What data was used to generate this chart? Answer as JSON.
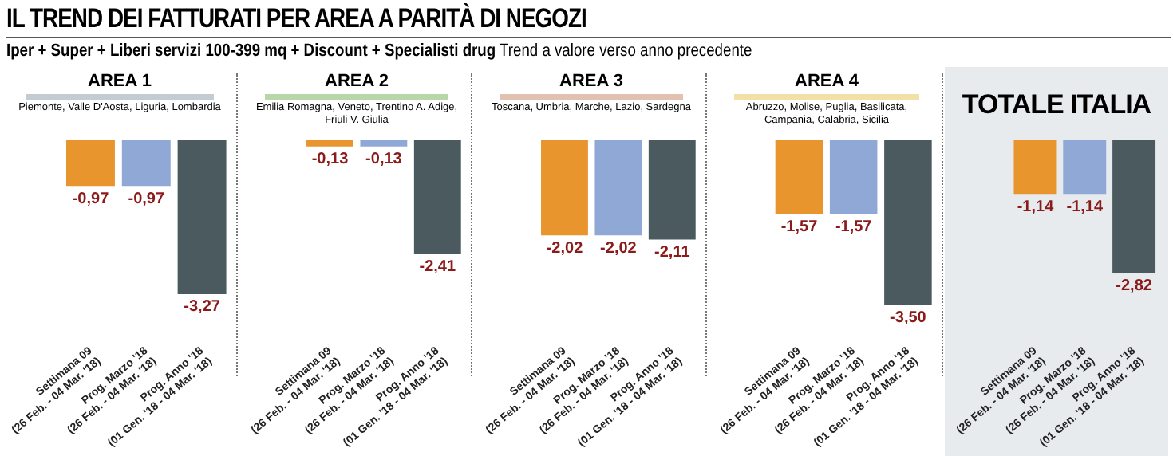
{
  "chart_data": [
    {
      "type": "other",
      "title": "IL TREND DEI FATTURATI PER AREA A PARITÀ DI NEGOZI",
      "subtitle": "Iper + Super + Liberi servizi 100-399 mq + Discount + Specialisti drug Trend a valore verso anno precedente"
    },
    {
      "type": "bar",
      "title": "AREA 1",
      "subtitle": "Piemonte, Valle D'Aosta, Liguria, Lombardia",
      "categories": [
        "Settimana 09\n(26 Feb. - 04 Mar. '18)",
        "Prog. Marzo '18\n(26 Feb. - 04 Mar. '18)",
        "Prog. Anno '18\n(01 Gen. '18 - 04 Mar. '18)"
      ],
      "values": [
        -0.97,
        -0.97,
        -3.27
      ],
      "colors": [
        "#e8952e",
        "#8fa8d6",
        "#4b5a5f"
      ],
      "value_labels": [
        "-0,97",
        "-0,97",
        "-3,27"
      ]
    },
    {
      "type": "bar",
      "title": "AREA 2",
      "subtitle": "Emilia Romagna, Veneto, Trentino A. Adige, Friuli V. Giulia",
      "categories": [
        "Settimana 09\n(26 Feb. - 04 Mar. '18)",
        "Prog. Marzo '18\n(26 Feb. - 04 Mar. '18)",
        "Prog. Anno '18\n(01 Gen. '18 - 04 Mar. '18)"
      ],
      "values": [
        -0.13,
        -0.13,
        -2.41
      ],
      "colors": [
        "#e8952e",
        "#8fa8d6",
        "#4b5a5f"
      ],
      "value_labels": [
        "-0,13",
        "-0,13",
        "-2,41"
      ]
    },
    {
      "type": "bar",
      "title": "AREA 3",
      "subtitle": "Toscana, Umbria, Marche, Lazio, Sardegna",
      "categories": [
        "Settimana 09\n(26 Feb. - 04 Mar. '18)",
        "Prog. Marzo '18\n(26 Feb. - 04 Mar. '18)",
        "Prog. Anno '18\n(01 Gen. '18 - 04 Mar. '18)"
      ],
      "values": [
        -2.02,
        -2.02,
        -2.11
      ],
      "colors": [
        "#e8952e",
        "#8fa8d6",
        "#4b5a5f"
      ],
      "value_labels": [
        "-2,02",
        "-2,02",
        "-2,11"
      ]
    },
    {
      "type": "bar",
      "title": "AREA 4",
      "subtitle": "Abruzzo, Molise, Puglia, Basilicata, Campania, Calabria, Sicilia",
      "categories": [
        "Settimana 09\n(26 Feb. - 04 Mar. '18)",
        "Prog. Marzo '18\n(26 Feb. - 04 Mar. '18)",
        "Prog. Anno '18\n(01 Gen. '18 - 04 Mar. '18)"
      ],
      "values": [
        -1.57,
        -1.57,
        -3.5
      ],
      "colors": [
        "#e8952e",
        "#8fa8d6",
        "#4b5a5f"
      ],
      "value_labels": [
        "-1,57",
        "-1,57",
        "-3,50"
      ]
    },
    {
      "type": "bar",
      "title": "TOTALE ITALIA",
      "categories": [
        "Settimana 09\n(26 Feb. - 04 Mar. '18)",
        "Prog. Marzo '18\n(26 Feb. - 04 Mar. '18)",
        "Prog. Anno '18\n(01 Gen. '18 - 04 Mar. '18)"
      ],
      "values": [
        -1.14,
        -1.14,
        -2.82
      ],
      "colors": [
        "#e8952e",
        "#8fa8d6",
        "#4b5a5f"
      ],
      "value_labels": [
        "-1,14",
        "-1,14",
        "-2,82"
      ]
    }
  ]
}
